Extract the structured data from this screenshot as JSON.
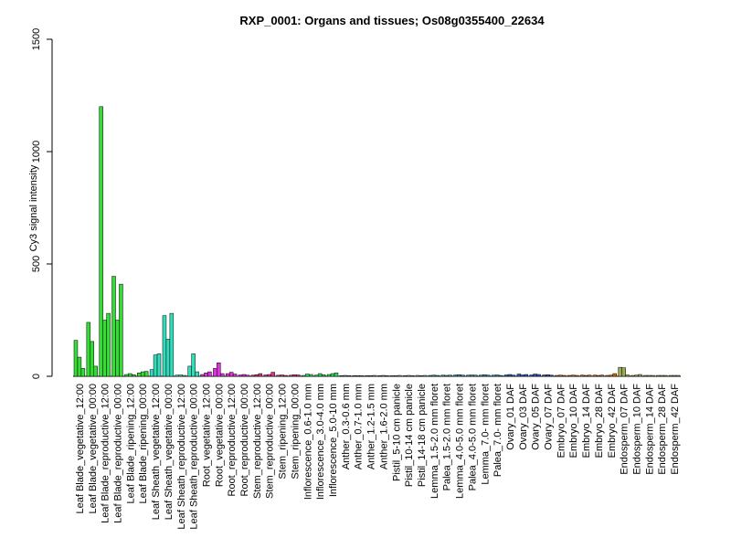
{
  "chart_data": {
    "type": "bar",
    "title": "RXP_0001: Organs and tissues; Os08g0355400_22634",
    "xlabel": "",
    "ylabel": "Cy3 signal intensity",
    "ylim": [
      0,
      1500
    ],
    "yticks": [
      0,
      500,
      1000,
      1500
    ],
    "grid": false,
    "legend": "none",
    "categories": [
      "Leaf Blade_vegetative_12:00",
      "Leaf Blade_vegetative_00:00",
      "Leaf Blade_reproductive_12:00",
      "Leaf Blade_reproductive_00:00",
      "Leaf Blade_ripening_12:00",
      "Leaf Blade_ripening_00:00",
      "Leaf Sheath_vegetative_12:00",
      "Leaf Sheath_vegetative_00:00",
      "Leaf Sheath_reproductive_12:00",
      "Leaf Sheath_reproductive_00:00",
      "Root_vegetative_12:00",
      "Root_vegetative_00:00",
      "Root_reproductive_12:00",
      "Root_reproductive_00:00",
      "Stem_reproductive_12:00",
      "Stem_reproductive_00:00",
      "Stem_ripening_12:00",
      "Stem_ripening_00:00",
      "Inflorescence_0.6-1.0 mm",
      "Inflorescence_3.0-4.0 mm",
      "Inflorescence_5.0-10 mm",
      "Anther_0.3-0.6 mm",
      "Anther_0.7-1.0 mm",
      "Anther_1.2-1.5 mm",
      "Anther_1.6-2.0 mm",
      "Pistil_5-10 cm panicle",
      "Pistil_10-14 cm panicle",
      "Pistil_14-18 cm panicle",
      "Lemma_1.5-2.0 mm floret",
      "Palea_1.5-2.0 mm floret",
      "Lemma_4.0-5.0 mm floret",
      "Palea_4.0-5.0 mm floret",
      "Lemma_7.0- mm floret",
      "Palea_7.0- mm floret",
      "Ovary_01 DAF",
      "Ovary_03 DAF",
      "Ovary_05 DAF",
      "Ovary_07 DAF",
      "Embryo_07 DAF",
      "Embryo_10 DAF",
      "Embryo_14 DAF",
      "Embryo_28 DAF",
      "Embryo_42 DAF",
      "Endosperm_07 DAF",
      "Endosperm_10 DAF",
      "Endosperm_14 DAF",
      "Endosperm_28 DAF",
      "Endosperm_42 DAF"
    ],
    "values": [
      [
        160,
        85,
        35
      ],
      [
        240,
        155,
        45
      ],
      [
        1200,
        250,
        280
      ],
      [
        445,
        250,
        410
      ],
      [
        8,
        12,
        7
      ],
      [
        15,
        20,
        22
      ],
      [
        30,
        95,
        100
      ],
      [
        270,
        165,
        280
      ],
      [
        5,
        6,
        4
      ],
      [
        45,
        100,
        20
      ],
      [
        8,
        15,
        20
      ],
      [
        35,
        60,
        12
      ],
      [
        12,
        18,
        10
      ],
      [
        6,
        8,
        5
      ],
      [
        5,
        7,
        12
      ],
      [
        6,
        8,
        18
      ],
      [
        5,
        6,
        4
      ],
      [
        5,
        7,
        6
      ],
      [
        4,
        10,
        8
      ],
      [
        5,
        12,
        7
      ],
      [
        8,
        12,
        15
      ],
      [
        3,
        4,
        3
      ],
      [
        3,
        3,
        3
      ],
      [
        3,
        3,
        4
      ],
      [
        3,
        4,
        3
      ],
      [
        3,
        3,
        4
      ],
      [
        3,
        4,
        3
      ],
      [
        4,
        3,
        4
      ],
      [
        4,
        5,
        4
      ],
      [
        5,
        4,
        5
      ],
      [
        6,
        7,
        5
      ],
      [
        5,
        6,
        5
      ],
      [
        5,
        7,
        5
      ],
      [
        5,
        6,
        4
      ],
      [
        6,
        8,
        5
      ],
      [
        10,
        6,
        8
      ],
      [
        6,
        10,
        8
      ],
      [
        6,
        7,
        5
      ],
      [
        4,
        5,
        4
      ],
      [
        4,
        5,
        4
      ],
      [
        5,
        4,
        5
      ],
      [
        5,
        4,
        5
      ],
      [
        4,
        5,
        12
      ],
      [
        40,
        38,
        6
      ],
      [
        4,
        5,
        8
      ],
      [
        4,
        4,
        4
      ],
      [
        4,
        4,
        4
      ],
      [
        4,
        4,
        4
      ]
    ],
    "group_colors": [
      "#33dd33",
      "#33dd33",
      "#33dd33",
      "#33dd33",
      "#33dd33",
      "#33dd33",
      "#33ddbb",
      "#33ddbb",
      "#33ddbb",
      "#33ddbb",
      "#dd33dd",
      "#dd33dd",
      "#dd33dd",
      "#dd33dd",
      "#dd3388",
      "#dd3388",
      "#dd3388",
      "#dd3388",
      "#33dd55",
      "#33dd55",
      "#33dd55",
      "#999999",
      "#999999",
      "#999999",
      "#999999",
      "#aaaaaa",
      "#aaaaaa",
      "#aaaaaa",
      "#3399aa",
      "#3399aa",
      "#3399aa",
      "#3399aa",
      "#3399aa",
      "#3399aa",
      "#3355bb",
      "#3355bb",
      "#3355bb",
      "#3355bb",
      "#cc6622",
      "#cc6622",
      "#cc6622",
      "#cc6622",
      "#dd6600",
      "#99aa55",
      "#99aa55",
      "#99aa55",
      "#99aa55",
      "#99aa55"
    ]
  }
}
